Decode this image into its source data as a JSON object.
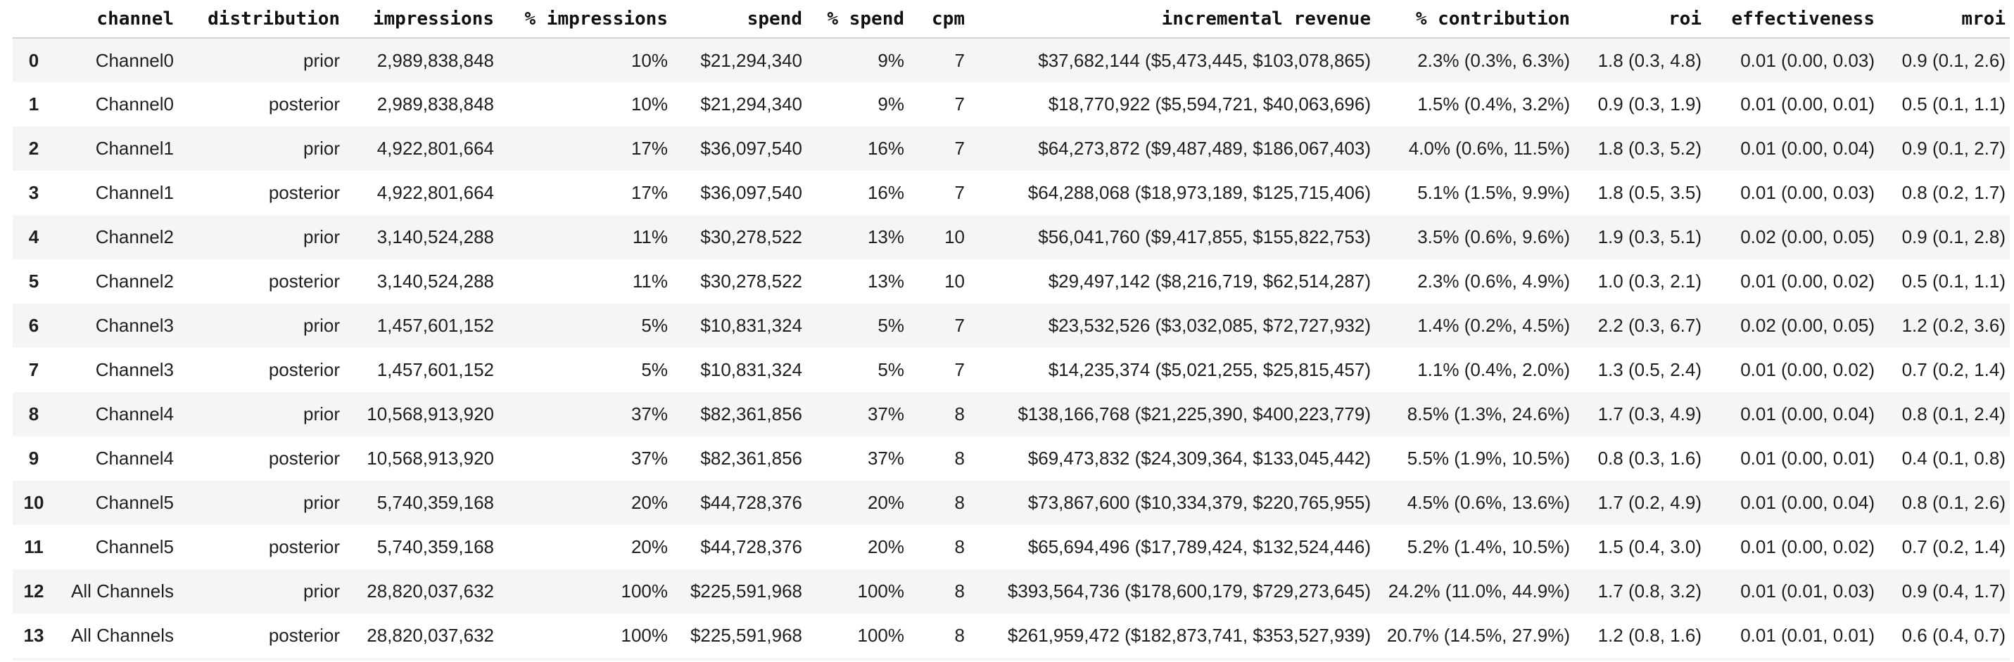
{
  "colors": {
    "row_stripe": "#f5f5f5",
    "header_border": "#d5d5d5",
    "text": "#1f1f1f",
    "background": "#ffffff"
  },
  "chart_data": {
    "type": "table",
    "columns": [
      {
        "key": "index",
        "label": ""
      },
      {
        "key": "channel",
        "label": "channel"
      },
      {
        "key": "distribution",
        "label": "distribution"
      },
      {
        "key": "impressions",
        "label": "impressions"
      },
      {
        "key": "pct_impressions",
        "label": "% impressions"
      },
      {
        "key": "spend",
        "label": "spend"
      },
      {
        "key": "pct_spend",
        "label": "% spend"
      },
      {
        "key": "cpm",
        "label": "cpm"
      },
      {
        "key": "incremental_revenue",
        "label": "incremental revenue"
      },
      {
        "key": "pct_contribution",
        "label": "% contribution"
      },
      {
        "key": "roi",
        "label": "roi"
      },
      {
        "key": "effectiveness",
        "label": "effectiveness"
      },
      {
        "key": "mroi",
        "label": "mroi"
      }
    ],
    "rows": [
      {
        "index": "0",
        "channel": "Channel0",
        "distribution": "prior",
        "impressions": "2,989,838,848",
        "pct_impressions": "10%",
        "spend": "$21,294,340",
        "pct_spend": "9%",
        "cpm": "7",
        "incremental_revenue": "$37,682,144 ($5,473,445, $103,078,865)",
        "pct_contribution": "2.3% (0.3%, 6.3%)",
        "roi": "1.8 (0.3, 4.8)",
        "effectiveness": "0.01 (0.00, 0.03)",
        "mroi": "0.9 (0.1, 2.6)"
      },
      {
        "index": "1",
        "channel": "Channel0",
        "distribution": "posterior",
        "impressions": "2,989,838,848",
        "pct_impressions": "10%",
        "spend": "$21,294,340",
        "pct_spend": "9%",
        "cpm": "7",
        "incremental_revenue": "$18,770,922 ($5,594,721, $40,063,696)",
        "pct_contribution": "1.5% (0.4%, 3.2%)",
        "roi": "0.9 (0.3, 1.9)",
        "effectiveness": "0.01 (0.00, 0.01)",
        "mroi": "0.5 (0.1, 1.1)"
      },
      {
        "index": "2",
        "channel": "Channel1",
        "distribution": "prior",
        "impressions": "4,922,801,664",
        "pct_impressions": "17%",
        "spend": "$36,097,540",
        "pct_spend": "16%",
        "cpm": "7",
        "incremental_revenue": "$64,273,872 ($9,487,489, $186,067,403)",
        "pct_contribution": "4.0% (0.6%, 11.5%)",
        "roi": "1.8 (0.3, 5.2)",
        "effectiveness": "0.01 (0.00, 0.04)",
        "mroi": "0.9 (0.1, 2.7)"
      },
      {
        "index": "3",
        "channel": "Channel1",
        "distribution": "posterior",
        "impressions": "4,922,801,664",
        "pct_impressions": "17%",
        "spend": "$36,097,540",
        "pct_spend": "16%",
        "cpm": "7",
        "incremental_revenue": "$64,288,068 ($18,973,189, $125,715,406)",
        "pct_contribution": "5.1% (1.5%, 9.9%)",
        "roi": "1.8 (0.5, 3.5)",
        "effectiveness": "0.01 (0.00, 0.03)",
        "mroi": "0.8 (0.2, 1.7)"
      },
      {
        "index": "4",
        "channel": "Channel2",
        "distribution": "prior",
        "impressions": "3,140,524,288",
        "pct_impressions": "11%",
        "spend": "$30,278,522",
        "pct_spend": "13%",
        "cpm": "10",
        "incremental_revenue": "$56,041,760 ($9,417,855, $155,822,753)",
        "pct_contribution": "3.5% (0.6%, 9.6%)",
        "roi": "1.9 (0.3, 5.1)",
        "effectiveness": "0.02 (0.00, 0.05)",
        "mroi": "0.9 (0.1, 2.8)"
      },
      {
        "index": "5",
        "channel": "Channel2",
        "distribution": "posterior",
        "impressions": "3,140,524,288",
        "pct_impressions": "11%",
        "spend": "$30,278,522",
        "pct_spend": "13%",
        "cpm": "10",
        "incremental_revenue": "$29,497,142 ($8,216,719, $62,514,287)",
        "pct_contribution": "2.3% (0.6%, 4.9%)",
        "roi": "1.0 (0.3, 2.1)",
        "effectiveness": "0.01 (0.00, 0.02)",
        "mroi": "0.5 (0.1, 1.1)"
      },
      {
        "index": "6",
        "channel": "Channel3",
        "distribution": "prior",
        "impressions": "1,457,601,152",
        "pct_impressions": "5%",
        "spend": "$10,831,324",
        "pct_spend": "5%",
        "cpm": "7",
        "incremental_revenue": "$23,532,526 ($3,032,085, $72,727,932)",
        "pct_contribution": "1.4% (0.2%, 4.5%)",
        "roi": "2.2 (0.3, 6.7)",
        "effectiveness": "0.02 (0.00, 0.05)",
        "mroi": "1.2 (0.2, 3.6)"
      },
      {
        "index": "7",
        "channel": "Channel3",
        "distribution": "posterior",
        "impressions": "1,457,601,152",
        "pct_impressions": "5%",
        "spend": "$10,831,324",
        "pct_spend": "5%",
        "cpm": "7",
        "incremental_revenue": "$14,235,374 ($5,021,255, $25,815,457)",
        "pct_contribution": "1.1% (0.4%, 2.0%)",
        "roi": "1.3 (0.5, 2.4)",
        "effectiveness": "0.01 (0.00, 0.02)",
        "mroi": "0.7 (0.2, 1.4)"
      },
      {
        "index": "8",
        "channel": "Channel4",
        "distribution": "prior",
        "impressions": "10,568,913,920",
        "pct_impressions": "37%",
        "spend": "$82,361,856",
        "pct_spend": "37%",
        "cpm": "8",
        "incremental_revenue": "$138,166,768 ($21,225,390, $400,223,779)",
        "pct_contribution": "8.5% (1.3%, 24.6%)",
        "roi": "1.7 (0.3, 4.9)",
        "effectiveness": "0.01 (0.00, 0.04)",
        "mroi": "0.8 (0.1, 2.4)"
      },
      {
        "index": "9",
        "channel": "Channel4",
        "distribution": "posterior",
        "impressions": "10,568,913,920",
        "pct_impressions": "37%",
        "spend": "$82,361,856",
        "pct_spend": "37%",
        "cpm": "8",
        "incremental_revenue": "$69,473,832 ($24,309,364, $133,045,442)",
        "pct_contribution": "5.5% (1.9%, 10.5%)",
        "roi": "0.8 (0.3, 1.6)",
        "effectiveness": "0.01 (0.00, 0.01)",
        "mroi": "0.4 (0.1, 0.8)"
      },
      {
        "index": "10",
        "channel": "Channel5",
        "distribution": "prior",
        "impressions": "5,740,359,168",
        "pct_impressions": "20%",
        "spend": "$44,728,376",
        "pct_spend": "20%",
        "cpm": "8",
        "incremental_revenue": "$73,867,600 ($10,334,379, $220,765,955)",
        "pct_contribution": "4.5% (0.6%, 13.6%)",
        "roi": "1.7 (0.2, 4.9)",
        "effectiveness": "0.01 (0.00, 0.04)",
        "mroi": "0.8 (0.1, 2.6)"
      },
      {
        "index": "11",
        "channel": "Channel5",
        "distribution": "posterior",
        "impressions": "5,740,359,168",
        "pct_impressions": "20%",
        "spend": "$44,728,376",
        "pct_spend": "20%",
        "cpm": "8",
        "incremental_revenue": "$65,694,496 ($17,789,424, $132,524,446)",
        "pct_contribution": "5.2% (1.4%, 10.5%)",
        "roi": "1.5 (0.4, 3.0)",
        "effectiveness": "0.01 (0.00, 0.02)",
        "mroi": "0.7 (0.2, 1.4)"
      },
      {
        "index": "12",
        "channel": "All Channels",
        "distribution": "prior",
        "impressions": "28,820,037,632",
        "pct_impressions": "100%",
        "spend": "$225,591,968",
        "pct_spend": "100%",
        "cpm": "8",
        "incremental_revenue": "$393,564,736 ($178,600,179, $729,273,645)",
        "pct_contribution": "24.2% (11.0%, 44.9%)",
        "roi": "1.7 (0.8, 3.2)",
        "effectiveness": "0.01 (0.01, 0.03)",
        "mroi": "0.9 (0.4, 1.7)"
      },
      {
        "index": "13",
        "channel": "All Channels",
        "distribution": "posterior",
        "impressions": "28,820,037,632",
        "pct_impressions": "100%",
        "spend": "$225,591,968",
        "pct_spend": "100%",
        "cpm": "8",
        "incremental_revenue": "$261,959,472 ($182,873,741, $353,527,939)",
        "pct_contribution": "20.7% (14.5%, 27.9%)",
        "roi": "1.2 (0.8, 1.6)",
        "effectiveness": "0.01 (0.01, 0.01)",
        "mroi": "0.6 (0.4, 0.7)"
      }
    ]
  }
}
